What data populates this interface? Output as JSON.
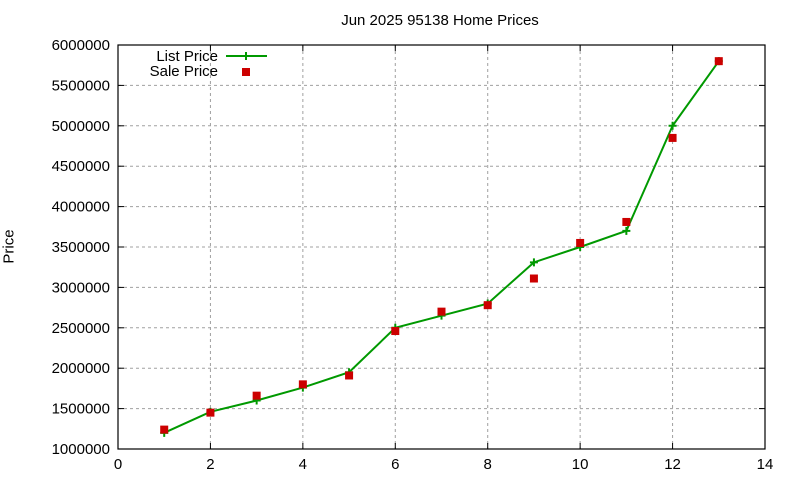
{
  "chart_data": {
    "type": "line",
    "title": "Jun 2025 95138 Home Prices",
    "xlabel": "",
    "ylabel": "Price",
    "xlim": [
      0,
      14
    ],
    "ylim": [
      1000000,
      6000000
    ],
    "x_ticks": [
      0,
      2,
      4,
      6,
      8,
      10,
      12,
      14
    ],
    "y_ticks": [
      1000000,
      1500000,
      2000000,
      2500000,
      3000000,
      3500000,
      4000000,
      4500000,
      5000000,
      5500000,
      6000000
    ],
    "grid": true,
    "legend_position": "top-left",
    "x": [
      1,
      2,
      3,
      4,
      5,
      6,
      7,
      8,
      9,
      10,
      11,
      12,
      13
    ],
    "series": [
      {
        "name": "List Price",
        "style": "line+cross",
        "color": "#009900",
        "values": [
          1200000,
          1460000,
          1600000,
          1760000,
          1950000,
          2500000,
          2650000,
          2800000,
          3310000,
          3500000,
          3700000,
          5000000,
          5800000
        ]
      },
      {
        "name": "Sale Price",
        "style": "square-points",
        "color": "#cc0000",
        "values": [
          1240000,
          1450000,
          1660000,
          1800000,
          1910000,
          2460000,
          2700000,
          2780000,
          3110000,
          3550000,
          3810000,
          4850000,
          5800000
        ]
      }
    ]
  }
}
